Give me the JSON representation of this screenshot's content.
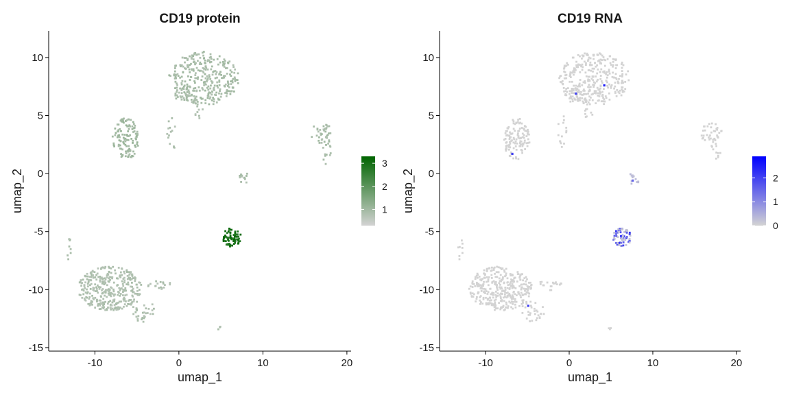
{
  "chart_data": [
    {
      "type": "scatter",
      "title": "CD19 protein",
      "xlabel": "umap_1",
      "ylabel": "umap_2",
      "xlim": [
        -15.5,
        20.5
      ],
      "ylim": [
        -15.3,
        12.3
      ],
      "xticks": [
        -10,
        0,
        10,
        20
      ],
      "yticks": [
        -15,
        -10,
        -5,
        0,
        5,
        10
      ],
      "xtick_labels": [
        "-10",
        "0",
        "10",
        "20"
      ],
      "ytick_labels": [
        "-15",
        "-10",
        "-5",
        "0",
        "5",
        "10"
      ],
      "grid": false,
      "legend": {
        "placement": "right",
        "ticks": [
          1,
          2,
          3
        ],
        "tick_labels": [
          "1",
          "2",
          "3"
        ],
        "min": 0.3,
        "max": 3.3,
        "low_color": "#d3d3d3",
        "high_color": "#006400"
      },
      "clusters": [
        {
          "cx": 3.0,
          "cy": 8.2,
          "rx": 4.2,
          "ry": 2.3,
          "n": 330,
          "value": 0.9
        },
        {
          "cx": 0.5,
          "cy": 7.0,
          "rx": 1.0,
          "ry": 1.0,
          "n": 25,
          "value": 0.9
        },
        {
          "cx": -6.3,
          "cy": 3.0,
          "rx": 1.6,
          "ry": 1.8,
          "n": 120,
          "value": 1.0
        },
        {
          "cx": -0.8,
          "cy": 3.5,
          "rx": 0.6,
          "ry": 1.5,
          "n": 14,
          "value": 0.8
        },
        {
          "cx": 2.3,
          "cy": 5.5,
          "rx": 0.6,
          "ry": 0.9,
          "n": 10,
          "value": 0.8
        },
        {
          "cx": 17.0,
          "cy": 3.5,
          "rx": 1.3,
          "ry": 0.9,
          "n": 35,
          "value": 0.9
        },
        {
          "cx": 17.5,
          "cy": 2.0,
          "rx": 0.6,
          "ry": 1.2,
          "n": 14,
          "value": 0.9
        },
        {
          "cx": 7.8,
          "cy": -0.4,
          "rx": 0.6,
          "ry": 0.6,
          "n": 12,
          "value": 0.9
        },
        {
          "cx": 6.3,
          "cy": -5.5,
          "rx": 1.1,
          "ry": 0.8,
          "n": 70,
          "value": 3.0
        },
        {
          "cx": -8.2,
          "cy": -9.9,
          "rx": 3.8,
          "ry": 1.9,
          "n": 360,
          "value": 0.8
        },
        {
          "cx": -4.3,
          "cy": -11.8,
          "rx": 1.4,
          "ry": 1.0,
          "n": 30,
          "value": 0.8
        },
        {
          "cx": -2.3,
          "cy": -9.6,
          "rx": 1.4,
          "ry": 0.5,
          "n": 18,
          "value": 0.8
        },
        {
          "cx": -13.0,
          "cy": -6.6,
          "rx": 0.3,
          "ry": 1.0,
          "n": 8,
          "value": 0.8
        },
        {
          "cx": 4.8,
          "cy": -13.4,
          "rx": 0.25,
          "ry": 0.25,
          "n": 3,
          "value": 0.8
        }
      ]
    },
    {
      "type": "scatter",
      "title": "CD19 RNA",
      "xlabel": "umap_1",
      "ylabel": "umap_2",
      "xlim": [
        -15.5,
        20.5
      ],
      "ylim": [
        -15.3,
        12.3
      ],
      "xticks": [
        -10,
        0,
        10,
        20
      ],
      "yticks": [
        -15,
        -10,
        -5,
        0,
        5,
        10
      ],
      "xtick_labels": [
        "-10",
        "0",
        "10",
        "20"
      ],
      "ytick_labels": [
        "-15",
        "-10",
        "-5",
        "0",
        "5",
        "10"
      ],
      "grid": false,
      "legend": {
        "placement": "right",
        "ticks": [
          0,
          1,
          2
        ],
        "tick_labels": [
          "0",
          "1",
          "2"
        ],
        "min": 0,
        "max": 2.9,
        "low_color": "#d3d3d3",
        "high_color": "#0000ff"
      },
      "clusters": [
        {
          "cx": 3.0,
          "cy": 8.2,
          "rx": 4.2,
          "ry": 2.3,
          "n": 330,
          "value": 0.0
        },
        {
          "cx": 0.5,
          "cy": 7.0,
          "rx": 1.0,
          "ry": 1.0,
          "n": 25,
          "value": 0.0
        },
        {
          "cx": -6.3,
          "cy": 3.0,
          "rx": 1.6,
          "ry": 1.8,
          "n": 120,
          "value": 0.0
        },
        {
          "cx": -0.8,
          "cy": 3.5,
          "rx": 0.6,
          "ry": 1.5,
          "n": 14,
          "value": 0.0
        },
        {
          "cx": 2.3,
          "cy": 5.5,
          "rx": 0.6,
          "ry": 0.9,
          "n": 10,
          "value": 0.0
        },
        {
          "cx": 17.0,
          "cy": 3.5,
          "rx": 1.3,
          "ry": 0.9,
          "n": 35,
          "value": 0.0
        },
        {
          "cx": 17.5,
          "cy": 2.0,
          "rx": 0.6,
          "ry": 1.2,
          "n": 14,
          "value": 0.0
        },
        {
          "cx": 7.8,
          "cy": -0.4,
          "rx": 0.6,
          "ry": 0.6,
          "n": 12,
          "value": 0.3
        },
        {
          "cx": 6.3,
          "cy": -5.5,
          "rx": 1.1,
          "ry": 0.8,
          "n": 70,
          "value": 1.6
        },
        {
          "cx": -8.2,
          "cy": -9.9,
          "rx": 3.8,
          "ry": 1.9,
          "n": 360,
          "value": 0.0
        },
        {
          "cx": -4.3,
          "cy": -11.8,
          "rx": 1.4,
          "ry": 1.0,
          "n": 30,
          "value": 0.0
        },
        {
          "cx": -2.3,
          "cy": -9.6,
          "rx": 1.4,
          "ry": 0.5,
          "n": 18,
          "value": 0.0
        },
        {
          "cx": -13.0,
          "cy": -6.6,
          "rx": 0.3,
          "ry": 1.0,
          "n": 8,
          "value": 0.0
        },
        {
          "cx": 4.8,
          "cy": -13.4,
          "rx": 0.25,
          "ry": 0.25,
          "n": 3,
          "value": 0.0
        }
      ],
      "highlights": [
        {
          "x": 4.2,
          "y": 7.6,
          "value": 2.5
        },
        {
          "x": 0.8,
          "y": 6.9,
          "value": 2.0
        },
        {
          "x": -6.8,
          "y": 1.7,
          "value": 2.0
        },
        {
          "x": -4.9,
          "y": -11.4,
          "value": 2.0
        },
        {
          "x": 7.6,
          "y": -0.6,
          "value": 1.5
        }
      ]
    }
  ]
}
